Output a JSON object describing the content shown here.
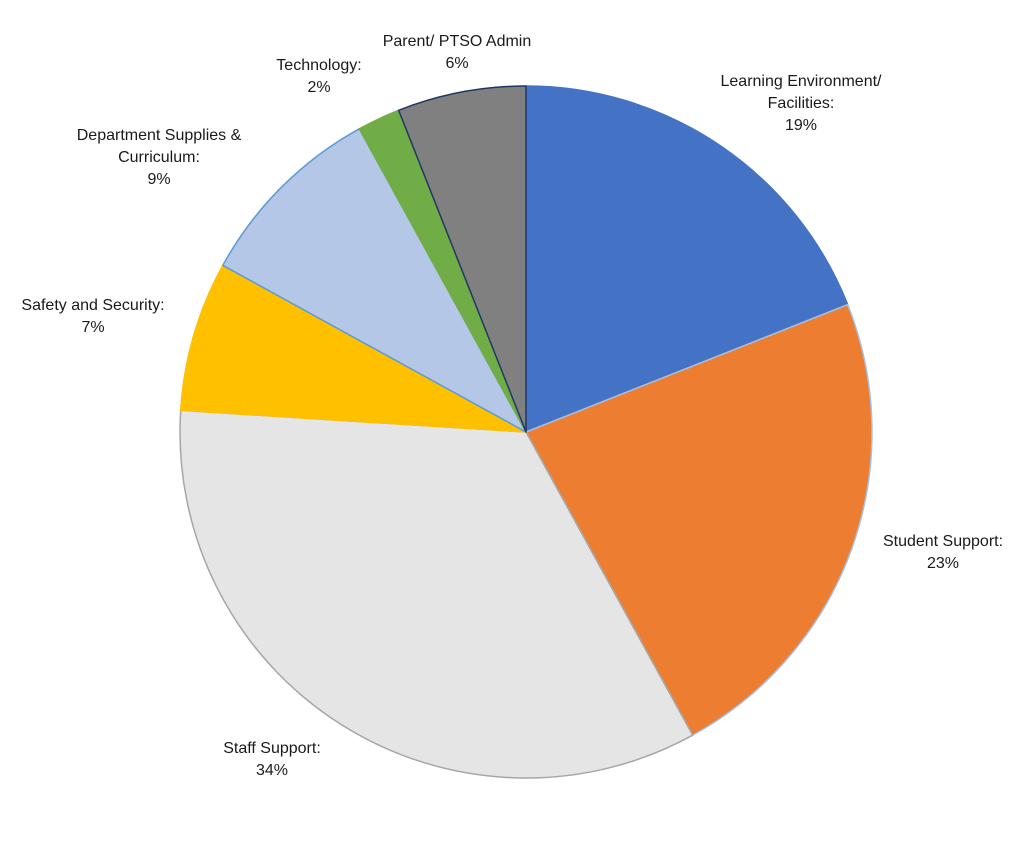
{
  "chart_data": {
    "type": "pie",
    "title": "",
    "start_angle_deg": 0,
    "direction": "clockwise",
    "slices": [
      {
        "label_lines": [
          "Learning Environment/",
          "Facilities:"
        ],
        "value": 19,
        "value_label": "19%",
        "color": "#4472C4",
        "stroke": "#4472C4"
      },
      {
        "label_lines": [
          "Student Support:"
        ],
        "value": 23,
        "value_label": "23%",
        "color": "#ED7D31",
        "stroke": "#A5C0E0"
      },
      {
        "label_lines": [
          "Staff Support:"
        ],
        "value": 34,
        "value_label": "34%",
        "color": "#E5E5E5",
        "stroke": "#A6A6A6"
      },
      {
        "label_lines": [
          "Safety and Security:"
        ],
        "value": 7,
        "value_label": "7%",
        "color": "#FFC000",
        "stroke": "#FFC000"
      },
      {
        "label_lines": [
          "Department Supplies &",
          "Curriculum:"
        ],
        "value": 9,
        "value_label": "9%",
        "color": "#B4C7E7",
        "stroke": "#5B9BD5"
      },
      {
        "label_lines": [
          "Technology:"
        ],
        "value": 2,
        "value_label": "2%",
        "color": "#70AD47",
        "stroke": "#70AD47"
      },
      {
        "label_lines": [
          "Parent/ PTSO Admin"
        ],
        "value": 6,
        "value_label": "6%",
        "color": "#808080",
        "stroke": "#203864"
      }
    ]
  }
}
